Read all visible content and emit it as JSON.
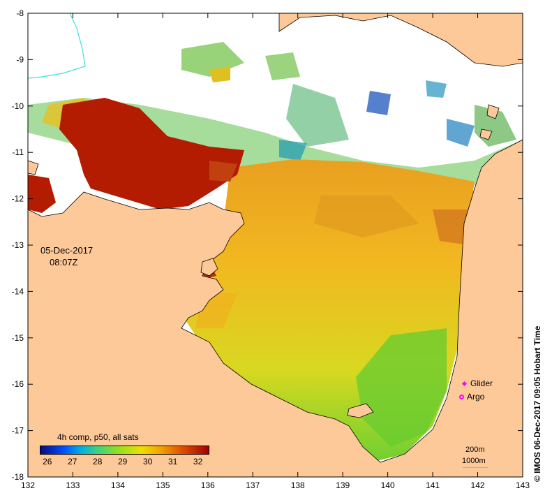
{
  "map": {
    "x_axis": {
      "ticks": [
        "132",
        "133",
        "134",
        "135",
        "136",
        "137",
        "138",
        "139",
        "140",
        "141",
        "142",
        "143"
      ]
    },
    "y_axis": {
      "ticks": [
        "-8",
        "-9",
        "-10",
        "-11",
        "-12",
        "-13",
        "-14",
        "-15",
        "-16",
        "-17",
        "-18"
      ]
    },
    "lon_range": [
      132,
      143
    ],
    "lat_range": [
      -18,
      -8
    ]
  },
  "timestamp": {
    "date": "05-Dec-2017",
    "time": "08:07Z"
  },
  "legend": {
    "title": "4h comp, p50, all sats",
    "colorbar_labels": [
      "26",
      "27",
      "28",
      "29",
      "30",
      "31",
      "32"
    ],
    "colorbar_range": [
      25.7,
      32.4
    ]
  },
  "markers": {
    "glider": "Glider",
    "argo": "Argo"
  },
  "depth_contours": {
    "shallow": "200m",
    "deep": "1000m"
  },
  "credit": "© IMOS 06-Dec-2017 09:05 Hobart Time",
  "colors": {
    "land": "#fdc999",
    "cloud": "#ffffff",
    "hot": "#b31c00",
    "warm_orange": "#f0a020",
    "yellow": "#f5d000",
    "green": "#70d030",
    "cyan": "#30b0c0",
    "blue": "#1840c0",
    "contour_1000": "#3fe0e0",
    "marker": "#ff00ff"
  }
}
